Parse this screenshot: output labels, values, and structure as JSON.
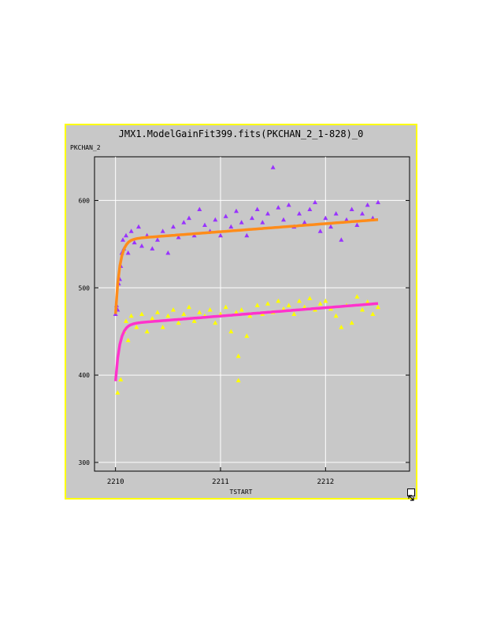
{
  "window": {
    "title": "JMX1.ModelGainFit399.fits(PKCHAN_2_1-828)_0",
    "resize_icon": "resize-corner-icon"
  },
  "colors": {
    "panel_bg": "#c8c8c8",
    "border": "#ffff00",
    "grid": "#ffffff",
    "series_purple": "#9933ff",
    "series_yellow": "#ffff00",
    "fit_orange": "#ff8c1a",
    "fit_magenta": "#ff33cc"
  },
  "chart_data": {
    "type": "scatter",
    "title": "JMX1.ModelGainFit399.fits(PKCHAN_2_1-828)_0",
    "xlabel": "TSTART",
    "ylabel": "PKCHAN_2",
    "xlim": [
      2209.8,
      2212.8
    ],
    "ylim": [
      290,
      650
    ],
    "xticks": [
      2210,
      2211,
      2212
    ],
    "yticks": [
      300,
      400,
      500,
      600
    ],
    "grid": true,
    "series": [
      {
        "marker": "triangle",
        "color": "#9933ff",
        "points": [
          [
            2210.0,
            470
          ],
          [
            2210.01,
            480
          ],
          [
            2210.02,
            475
          ],
          [
            2210.03,
            505
          ],
          [
            2210.04,
            510
          ],
          [
            2210.05,
            525
          ],
          [
            2210.06,
            540
          ],
          [
            2210.07,
            555
          ],
          [
            2210.08,
            545
          ],
          [
            2210.1,
            560
          ],
          [
            2210.12,
            540
          ],
          [
            2210.15,
            565
          ],
          [
            2210.18,
            552
          ],
          [
            2210.22,
            570
          ],
          [
            2210.25,
            548
          ],
          [
            2210.3,
            560
          ],
          [
            2210.35,
            545
          ],
          [
            2210.4,
            555
          ],
          [
            2210.45,
            565
          ],
          [
            2210.5,
            540
          ],
          [
            2210.55,
            570
          ],
          [
            2210.6,
            558
          ],
          [
            2210.65,
            575
          ],
          [
            2210.7,
            580
          ],
          [
            2210.75,
            560
          ],
          [
            2210.8,
            590
          ],
          [
            2210.85,
            572
          ],
          [
            2210.9,
            565
          ],
          [
            2210.95,
            578
          ],
          [
            2211.0,
            560
          ],
          [
            2211.05,
            582
          ],
          [
            2211.1,
            570
          ],
          [
            2211.15,
            588
          ],
          [
            2211.2,
            575
          ],
          [
            2211.25,
            560
          ],
          [
            2211.3,
            580
          ],
          [
            2211.35,
            590
          ],
          [
            2211.4,
            575
          ],
          [
            2211.45,
            585
          ],
          [
            2211.5,
            638
          ],
          [
            2211.55,
            592
          ],
          [
            2211.6,
            578
          ],
          [
            2211.65,
            595
          ],
          [
            2211.7,
            570
          ],
          [
            2211.75,
            585
          ],
          [
            2211.8,
            575
          ],
          [
            2211.85,
            590
          ],
          [
            2211.9,
            598
          ],
          [
            2211.95,
            565
          ],
          [
            2212.0,
            580
          ],
          [
            2212.05,
            570
          ],
          [
            2212.1,
            585
          ],
          [
            2212.15,
            555
          ],
          [
            2212.2,
            578
          ],
          [
            2212.25,
            590
          ],
          [
            2212.3,
            572
          ],
          [
            2212.35,
            585
          ],
          [
            2212.4,
            595
          ],
          [
            2212.45,
            580
          ],
          [
            2212.5,
            598
          ]
        ]
      },
      {
        "marker": "triangle",
        "color": "#ffff00",
        "points": [
          [
            2210.02,
            380
          ],
          [
            2210.05,
            395
          ],
          [
            2210.08,
            450
          ],
          [
            2210.1,
            462
          ],
          [
            2210.12,
            440
          ],
          [
            2210.15,
            468
          ],
          [
            2210.2,
            455
          ],
          [
            2210.25,
            470
          ],
          [
            2210.3,
            450
          ],
          [
            2210.35,
            465
          ],
          [
            2210.4,
            472
          ],
          [
            2210.45,
            455
          ],
          [
            2210.5,
            468
          ],
          [
            2210.55,
            475
          ],
          [
            2210.6,
            460
          ],
          [
            2210.65,
            470
          ],
          [
            2210.7,
            478
          ],
          [
            2210.75,
            462
          ],
          [
            2210.8,
            472
          ],
          [
            2210.85,
            468
          ],
          [
            2210.9,
            475
          ],
          [
            2210.95,
            460
          ],
          [
            2211.0,
            470
          ],
          [
            2211.05,
            478
          ],
          [
            2211.1,
            450
          ],
          [
            2211.15,
            472
          ],
          [
            2211.17,
            422
          ],
          [
            2211.2,
            475
          ],
          [
            2211.25,
            445
          ],
          [
            2211.28,
            468
          ],
          [
            2211.35,
            480
          ],
          [
            2211.4,
            470
          ],
          [
            2211.45,
            482
          ],
          [
            2211.5,
            472
          ],
          [
            2211.55,
            485
          ],
          [
            2211.6,
            476
          ],
          [
            2211.65,
            480
          ],
          [
            2211.7,
            470
          ],
          [
            2211.75,
            485
          ],
          [
            2211.8,
            478
          ],
          [
            2211.85,
            488
          ],
          [
            2211.9,
            475
          ],
          [
            2211.95,
            482
          ],
          [
            2212.0,
            485
          ],
          [
            2212.05,
            476
          ],
          [
            2212.1,
            468
          ],
          [
            2212.15,
            455
          ],
          [
            2212.2,
            480
          ],
          [
            2212.25,
            460
          ],
          [
            2212.3,
            490
          ],
          [
            2212.35,
            475
          ],
          [
            2212.4,
            484
          ],
          [
            2212.45,
            470
          ],
          [
            2212.5,
            478
          ],
          [
            2211.17,
            394
          ]
        ]
      }
    ],
    "fits": [
      {
        "color": "#ff8c1a",
        "y_start": 470,
        "y_mid": 555,
        "y_end": 578
      },
      {
        "color": "#ff33cc",
        "y_start": 393,
        "y_mid": 458,
        "y_end": 482
      }
    ]
  }
}
